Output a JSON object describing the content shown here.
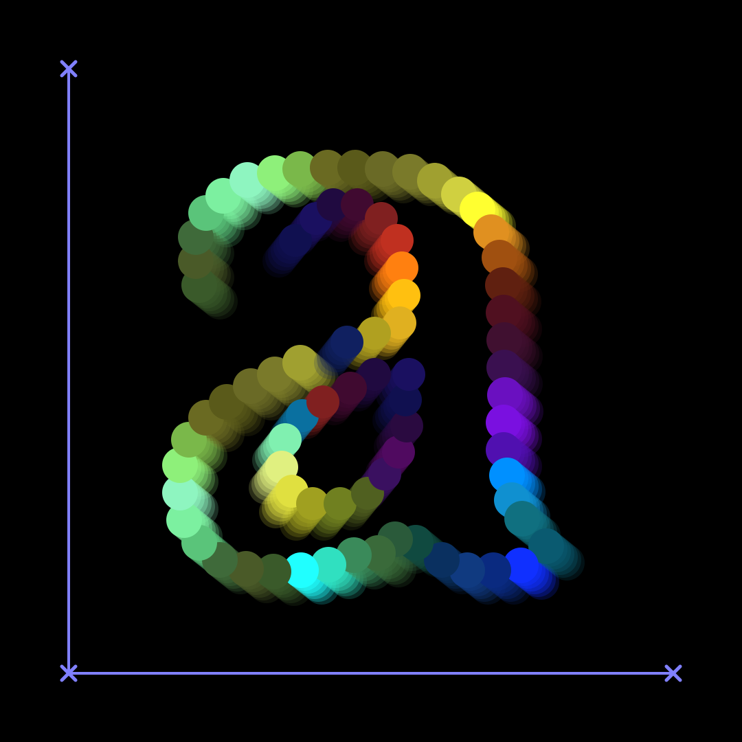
{
  "canvas": {
    "background": "#000000",
    "axis_color": "#8080ff"
  },
  "glyph": {
    "character": "a",
    "rendering": "stacked-circle-spiral",
    "ring_palette": [
      "#3a5a2a",
      "#4a5a28",
      "#3f6a3a",
      "#5ac47a",
      "#7cf0a0",
      "#8ef5c0",
      "#8ef07a",
      "#7ab84a",
      "#6a6a22",
      "#5a5a1a",
      "#6a6a26",
      "#7a7a2a",
      "#a0a030",
      "#d0d040",
      "#ffff30",
      "#e09020",
      "#a05010",
      "#602010",
      "#501020",
      "#401030",
      "#3a1050",
      "#6a10c0",
      "#7a10e0",
      "#5010b0",
      "#0090ff",
      "#1090d0",
      "#107080",
      "#0a5a70",
      "#1030ff",
      "#0a2a80",
      "#103a80",
      "#0a3060",
      "#104a40",
      "#2a5a3a",
      "#3a6a3a",
      "#3a8a5a",
      "#30e0c0",
      "#20ffff"
    ],
    "inner_palette": [
      "#101050",
      "#1a1060",
      "#200a40",
      "#400a30",
      "#802020",
      "#c03020",
      "#ff8010",
      "#ffc010",
      "#e0b020",
      "#b0a020",
      "#102060",
      "#0a70a0",
      "#80f0b0",
      "#e0f080",
      "#e0e040",
      "#a0a020",
      "#708020",
      "#506020",
      "#3a1060",
      "#500a60",
      "#2a0a40"
    ]
  }
}
